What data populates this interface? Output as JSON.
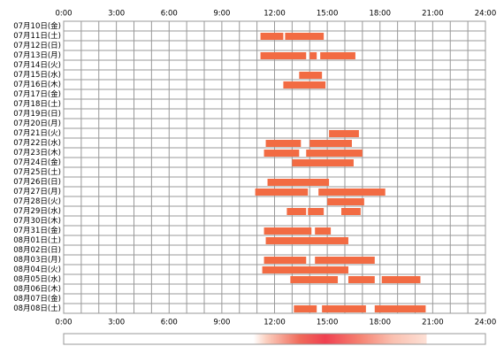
{
  "chart_data": {
    "type": "timeline",
    "categories": [
      "07月10日(金)",
      "07月11日(土)",
      "07月12日(日)",
      "07月13日(月)",
      "07月14日(火)",
      "07月15日(水)",
      "07月16日(木)",
      "07月17日(金)",
      "07月18日(土)",
      "07月19日(日)",
      "07月20日(月)",
      "07月21日(火)",
      "07月22日(水)",
      "07月23日(木)",
      "07月24日(金)",
      "07月25日(土)",
      "07月26日(日)",
      "07月27日(月)",
      "07月28日(火)",
      "07月29日(水)",
      "07月30日(木)",
      "07月31日(金)",
      "08月01日(土)",
      "08月02日(日)",
      "08月03日(月)",
      "08月04日(火)",
      "08月05日(水)",
      "08月06日(木)",
      "08月07日(金)",
      "08月08日(土)"
    ],
    "values": [
      [],
      [
        [
          11.2,
          12.5
        ],
        [
          12.6,
          14.8
        ]
      ],
      [],
      [
        [
          11.2,
          13.8
        ],
        [
          14.0,
          14.4
        ],
        [
          14.6,
          16.6
        ]
      ],
      [],
      [
        [
          13.4,
          14.7
        ]
      ],
      [
        [
          12.5,
          14.9
        ]
      ],
      [],
      [],
      [],
      [],
      [
        [
          15.1,
          16.8
        ]
      ],
      [
        [
          11.5,
          13.5
        ],
        [
          14.0,
          16.4
        ]
      ],
      [
        [
          11.4,
          13.4
        ],
        [
          13.8,
          17.0
        ]
      ],
      [
        [
          13.0,
          16.5
        ]
      ],
      [],
      [
        [
          11.6,
          15.1
        ]
      ],
      [
        [
          10.9,
          13.9
        ],
        [
          14.5,
          18.3
        ]
      ],
      [
        [
          15.0,
          17.1
        ]
      ],
      [
        [
          12.7,
          13.8
        ],
        [
          13.9,
          14.8
        ],
        [
          15.8,
          16.9
        ]
      ],
      [],
      [
        [
          11.4,
          14.1
        ],
        [
          14.3,
          15.2
        ]
      ],
      [
        [
          11.5,
          16.2
        ]
      ],
      [],
      [
        [
          11.4,
          13.8
        ],
        [
          14.3,
          17.7
        ]
      ],
      [
        [
          11.3,
          16.2
        ]
      ],
      [
        [
          12.9,
          15.6
        ],
        [
          16.2,
          17.7
        ],
        [
          18.1,
          20.3
        ]
      ],
      [],
      [],
      [
        [
          13.1,
          14.4
        ],
        [
          14.7,
          17.2
        ],
        [
          17.7,
          20.6
        ]
      ]
    ],
    "color": "#f26b43",
    "xlim": [
      0,
      24
    ],
    "xticks": [
      {
        "value": 0,
        "label": "0:00"
      },
      {
        "value": 3,
        "label": "3:00"
      },
      {
        "value": 6,
        "label": "6:00"
      },
      {
        "value": 9,
        "label": "9:00"
      },
      {
        "value": 12,
        "label": "12:00"
      },
      {
        "value": 15,
        "label": "15:00"
      },
      {
        "value": 18,
        "label": "18:00"
      },
      {
        "value": 21,
        "label": "21:00"
      },
      {
        "value": 24,
        "label": "24:00"
      }
    ],
    "xgrid": [
      0,
      1,
      2,
      3,
      4,
      5,
      6,
      7,
      8,
      9,
      10,
      11,
      12,
      13,
      14,
      15,
      16,
      17,
      18,
      19,
      20,
      21,
      22,
      23,
      24
    ],
    "grid": true
  }
}
